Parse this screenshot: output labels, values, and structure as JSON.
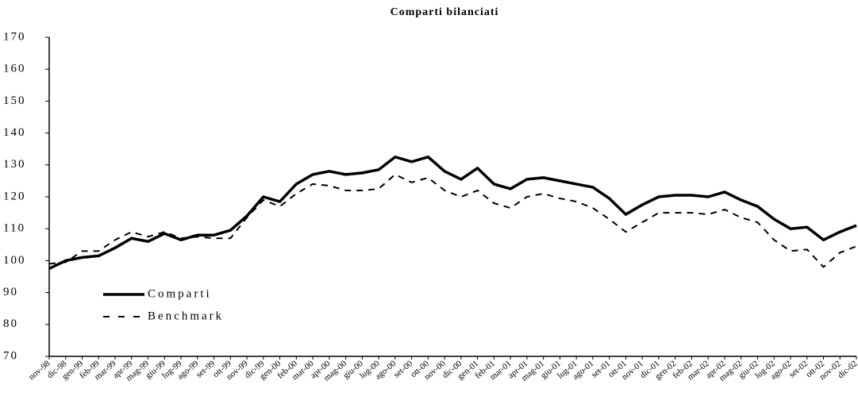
{
  "chart_data": {
    "type": "line",
    "title": "Comparti bilanciati",
    "categories": [
      "nov-98",
      "dic-98",
      "gen-99",
      "feb-99",
      "mar-99",
      "apr-99",
      "mag-99",
      "giu-99",
      "lug-99",
      "ago-99",
      "set-99",
      "ott-99",
      "nov-99",
      "dic-99",
      "gen-00",
      "feb-00",
      "mar-00",
      "apr-00",
      "mag-00",
      "giu-00",
      "lug-00",
      "ago-00",
      "set-00",
      "ott-00",
      "nov-00",
      "dic-00",
      "gen-01",
      "feb-01",
      "mar-01",
      "apr-01",
      "mag-01",
      "giu-01",
      "lug-01",
      "ago-01",
      "set-01",
      "ott-01",
      "nov-01",
      "dic-01",
      "gen-02",
      "feb-02",
      "mar-02",
      "apr-02",
      "mag-02",
      "giu-02",
      "lug-02",
      "ago-02",
      "set-02",
      "ott-02",
      "nov-02",
      "dic-02"
    ],
    "series": [
      {
        "name": "Comparti",
        "color": "#000000",
        "dash": false,
        "values": [
          97.5,
          100,
          101,
          101.5,
          104,
          107,
          106,
          108.5,
          106.5,
          108,
          108,
          109.5,
          114,
          120,
          118.5,
          124,
          127,
          128,
          127,
          127.5,
          128.5,
          132.5,
          131,
          132.5,
          128,
          125.5,
          129,
          124,
          122.5,
          125.5,
          126,
          125,
          124,
          123,
          119.5,
          114.5,
          117.5,
          120,
          120.5,
          120.5,
          120,
          121.5,
          119,
          117,
          113,
          110,
          110.5,
          106.5,
          109,
          111
        ]
      },
      {
        "name": "Benchmark",
        "color": "#000000",
        "dash": true,
        "values": [
          99,
          99.5,
          103,
          103,
          106.5,
          109,
          107.5,
          109,
          107,
          107.5,
          107,
          107,
          113.5,
          119,
          117,
          121,
          124,
          123.5,
          122,
          122,
          122.5,
          127,
          124.5,
          126,
          122,
          120,
          122,
          118,
          116.5,
          120,
          121,
          119.5,
          118.5,
          116.5,
          113,
          109,
          112,
          115,
          115,
          115,
          114.5,
          116,
          113.5,
          112,
          106.5,
          103,
          103.5,
          98,
          102.5,
          104.5
        ]
      }
    ],
    "ylim": [
      70,
      170
    ],
    "yticks": [
      70,
      80,
      90,
      100,
      110,
      120,
      130,
      140,
      150,
      160,
      170
    ],
    "grid": false,
    "legend": "lower left"
  }
}
